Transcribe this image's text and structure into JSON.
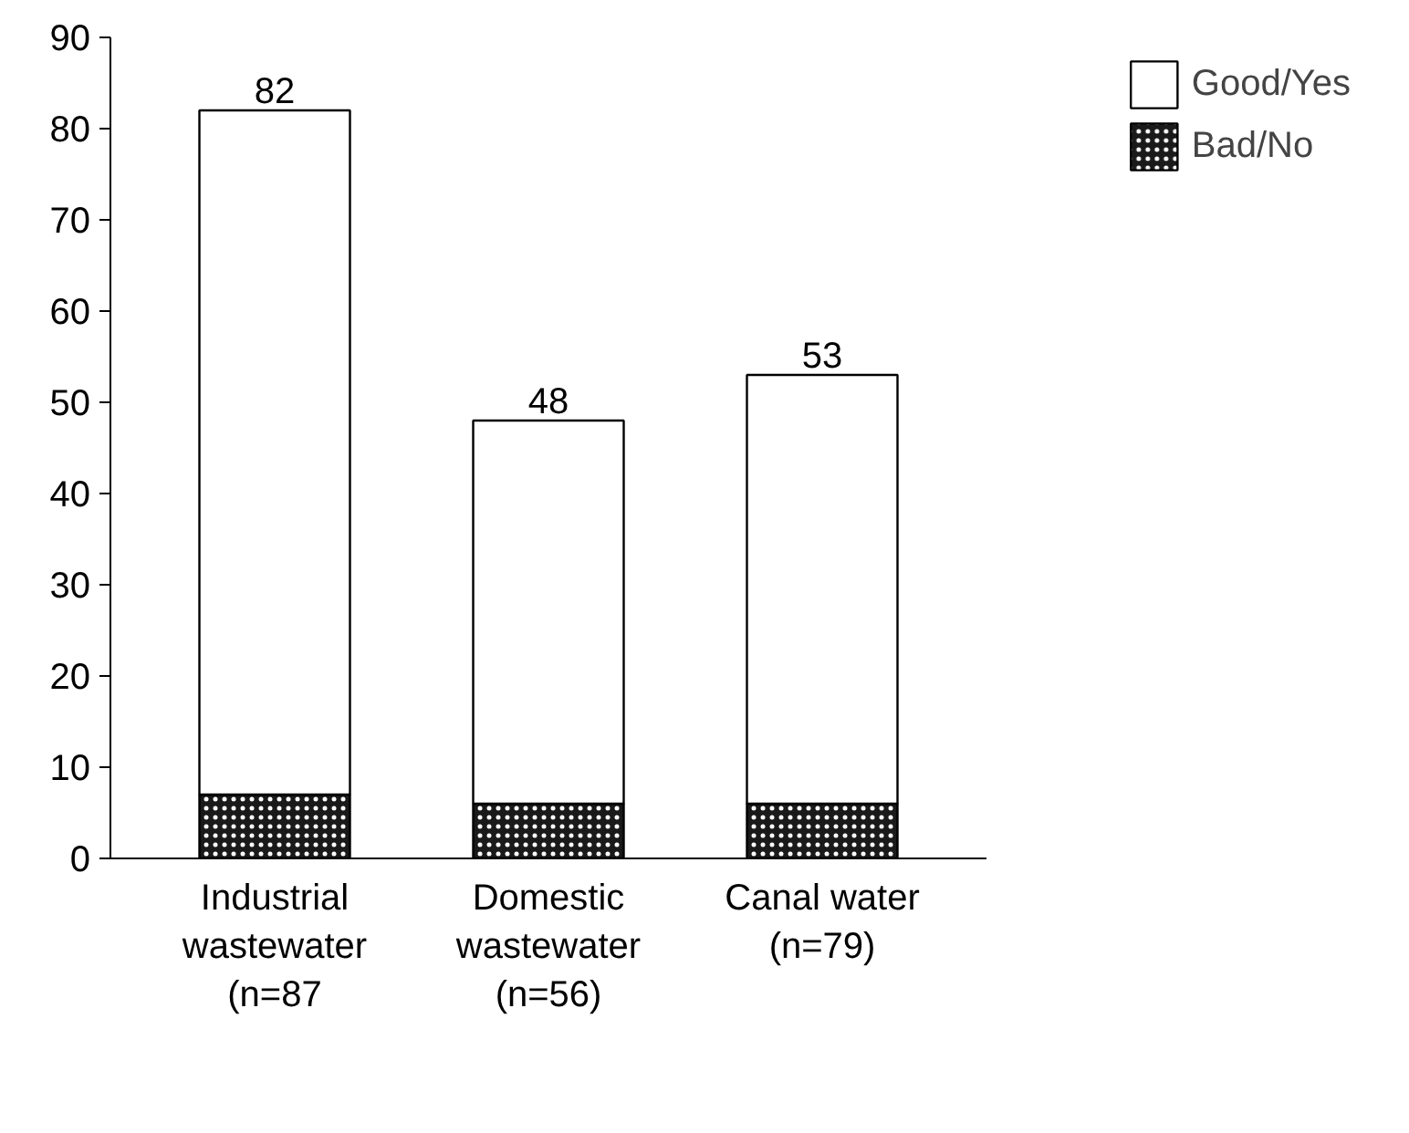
{
  "chart_data": {
    "type": "bar",
    "stacked": true,
    "categories": [
      "Industrial\nwastewater\n(n=87",
      "Domestic\nwastewater\n(n=56)",
      "Canal water\n(n=79)"
    ],
    "series": [
      {
        "name": "Bad/No",
        "color": "#1a1a1a",
        "values": [
          7,
          6,
          6
        ]
      },
      {
        "name": "Good/Yes",
        "color": "#ffffff",
        "values": [
          75,
          42,
          47
        ]
      }
    ],
    "totals": [
      "82",
      "48",
      "53"
    ],
    "ylim": [
      0,
      90
    ],
    "yticks": [
      0,
      10,
      20,
      30,
      40,
      50,
      60,
      70,
      80,
      90
    ],
    "grid": false,
    "legend": "top right"
  }
}
